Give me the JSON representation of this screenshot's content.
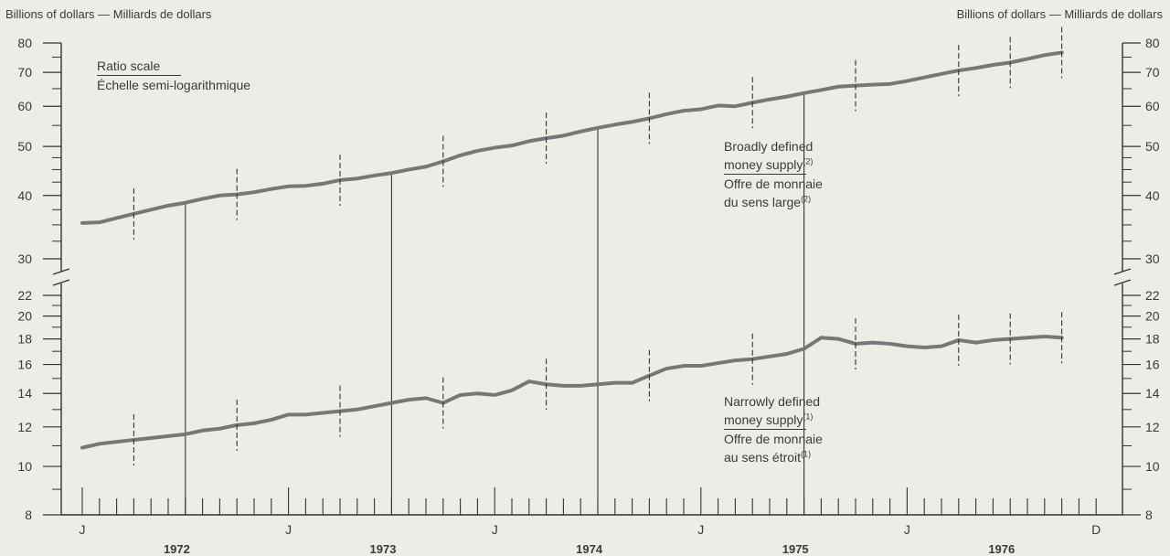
{
  "unit_label_left": "Billions of dollars — Milliards de dollars",
  "unit_label_right": "Billions of dollars — Milliards de dollars",
  "scale_note": {
    "en": "Ratio scale",
    "fr": "Échelle semi-logarithmique"
  },
  "broad_label": {
    "en_line1": "Broadly defined",
    "en_line2": "money supply",
    "fr_line1": "Offre de monnaie",
    "fr_line2": "du sens large",
    "note": "(2)"
  },
  "narrow_label": {
    "en_line1": "Narrowly defined",
    "en_line2": "money supply",
    "fr_line1": "Offre de monnaie",
    "fr_line2": "au sens étroit",
    "note": "(1)"
  },
  "colors": {
    "series": "#777777",
    "axis": "#333333",
    "background": "#eeece6"
  },
  "chart_data": {
    "type": "line",
    "scale": "log",
    "axis_break": "between 22 and 30",
    "grid": false,
    "y_ticks_upper": [
      30,
      40,
      50,
      60,
      70,
      80
    ],
    "y_ticks_lower": [
      8,
      10,
      12,
      14,
      16,
      18,
      20,
      22
    ],
    "x_month_labels": [
      "J",
      "J",
      "J",
      "J",
      "J",
      "D"
    ],
    "x_year_labels": [
      "1972",
      "1973",
      "1974",
      "1975",
      "1976"
    ],
    "x_range": [
      "1972-01",
      "1976-12"
    ],
    "series": [
      {
        "name": "Broadly defined money supply (2) — Offre de monnaie du sens large (2)",
        "months": [
          "1972-01",
          "1972-02",
          "1972-03",
          "1972-04",
          "1972-05",
          "1972-06",
          "1972-07",
          "1972-08",
          "1972-09",
          "1972-10",
          "1972-11",
          "1972-12",
          "1973-01",
          "1973-02",
          "1973-03",
          "1973-04",
          "1973-05",
          "1973-06",
          "1973-07",
          "1973-08",
          "1973-09",
          "1973-10",
          "1973-11",
          "1973-12",
          "1974-01",
          "1974-02",
          "1974-03",
          "1974-04",
          "1974-05",
          "1974-06",
          "1974-07",
          "1974-08",
          "1974-09",
          "1974-10",
          "1974-11",
          "1974-12",
          "1975-01",
          "1975-02",
          "1975-03",
          "1975-04",
          "1975-05",
          "1975-06",
          "1975-07",
          "1975-08",
          "1975-09",
          "1975-10",
          "1975-11",
          "1975-12",
          "1976-01",
          "1976-02",
          "1976-03",
          "1976-04",
          "1976-05",
          "1976-06",
          "1976-07",
          "1976-08",
          "1976-09",
          "1976-10"
        ],
        "values": [
          35.3,
          35.4,
          36.1,
          36.8,
          37.5,
          38.2,
          38.7,
          39.4,
          40.0,
          40.2,
          40.6,
          41.2,
          41.7,
          41.8,
          42.2,
          42.9,
          43.2,
          43.8,
          44.3,
          45.0,
          45.6,
          46.7,
          48.0,
          49.0,
          49.7,
          50.2,
          51.2,
          51.9,
          52.5,
          53.5,
          54.4,
          55.2,
          55.9,
          56.8,
          57.9,
          58.8,
          59.2,
          60.2,
          60.0,
          61.0,
          61.9,
          62.7,
          63.7,
          64.6,
          65.6,
          65.9,
          66.2,
          66.4,
          67.3,
          68.4,
          69.5,
          70.6,
          71.4,
          72.4,
          73.2,
          74.4,
          75.7,
          76.6
        ]
      },
      {
        "name": "Narrowly defined money supply (1) — Offre de monnaie au sens étroit (1)",
        "months": [
          "1972-01",
          "1972-02",
          "1972-03",
          "1972-04",
          "1972-05",
          "1972-06",
          "1972-07",
          "1972-08",
          "1972-09",
          "1972-10",
          "1972-11",
          "1972-12",
          "1973-01",
          "1973-02",
          "1973-03",
          "1973-04",
          "1973-05",
          "1973-06",
          "1973-07",
          "1973-08",
          "1973-09",
          "1973-10",
          "1973-11",
          "1973-12",
          "1974-01",
          "1974-02",
          "1974-03",
          "1974-04",
          "1974-05",
          "1974-06",
          "1974-07",
          "1974-08",
          "1974-09",
          "1974-10",
          "1974-11",
          "1974-12",
          "1975-01",
          "1975-02",
          "1975-03",
          "1975-04",
          "1975-05",
          "1975-06",
          "1975-07",
          "1975-08",
          "1975-09",
          "1975-10",
          "1975-11",
          "1975-12",
          "1976-01",
          "1976-02",
          "1976-03",
          "1976-04",
          "1976-05",
          "1976-06",
          "1976-07",
          "1976-08",
          "1976-09",
          "1976-10"
        ],
        "values": [
          10.9,
          11.1,
          11.2,
          11.3,
          11.4,
          11.5,
          11.6,
          11.8,
          11.9,
          12.1,
          12.2,
          12.4,
          12.7,
          12.7,
          12.8,
          12.9,
          13.0,
          13.2,
          13.4,
          13.6,
          13.7,
          13.4,
          13.9,
          14.0,
          13.9,
          14.2,
          14.8,
          14.6,
          14.5,
          14.5,
          14.6,
          14.7,
          14.7,
          15.2,
          15.7,
          15.9,
          15.9,
          16.1,
          16.3,
          16.4,
          16.6,
          16.8,
          17.2,
          18.1,
          18.0,
          17.6,
          17.7,
          17.6,
          17.4,
          17.3,
          17.4,
          17.9,
          17.7,
          17.9,
          18.0,
          18.1,
          18.2,
          18.1
        ]
      }
    ]
  }
}
